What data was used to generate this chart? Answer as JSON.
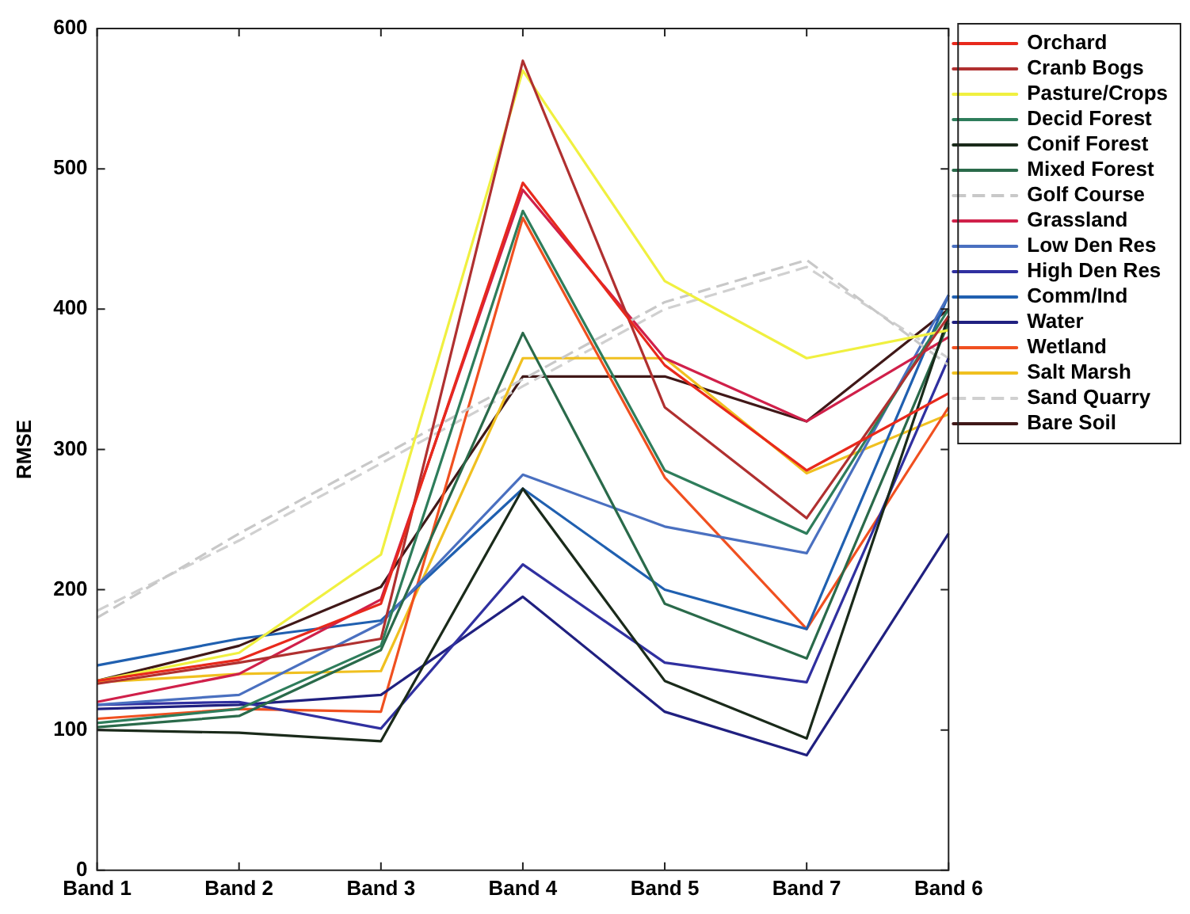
{
  "chart_data": {
    "type": "line",
    "ylabel": "RMSE",
    "categories": [
      "Band 1",
      "Band 2",
      "Band 3",
      "Band 4",
      "Band 5",
      "Band 7",
      "Band 6"
    ],
    "ylim": [
      0,
      600
    ],
    "yticks": [
      0,
      100,
      200,
      300,
      400,
      500,
      600
    ],
    "grid": false,
    "legend": "right",
    "marker": "none",
    "series": [
      {
        "name": "Orchard",
        "color": "#e8291c",
        "values": [
          135,
          150,
          190,
          490,
          360,
          285,
          340
        ]
      },
      {
        "name": "Cranb Bogs",
        "color": "#b03030",
        "values": [
          133,
          148,
          165,
          577,
          330,
          251,
          395
        ]
      },
      {
        "name": "Pasture/Crops",
        "color": "#f0f040",
        "values": [
          135,
          155,
          225,
          570,
          420,
          365,
          385
        ]
      },
      {
        "name": "Decid Forest",
        "color": "#2e7d5b",
        "values": [
          105,
          115,
          160,
          470,
          285,
          240,
          400
        ]
      },
      {
        "name": "Conif Forest",
        "color": "#1a2a1a",
        "values": [
          100,
          98,
          92,
          272,
          135,
          94,
          395
        ]
      },
      {
        "name": "Mixed Forest",
        "color": "#2a6a4a",
        "values": [
          102,
          110,
          157,
          383,
          190,
          151,
          390
        ]
      },
      {
        "name": "Golf Course",
        "color": "#c8c8c8",
        "line_style": "dashed",
        "values": [
          180,
          240,
          295,
          350,
          405,
          435,
          360
        ]
      },
      {
        "name": "Grassland",
        "color": "#d0204a",
        "values": [
          120,
          140,
          193,
          485,
          365,
          320,
          380
        ]
      },
      {
        "name": "Low Den Res",
        "color": "#4a70c0",
        "values": [
          118,
          125,
          176,
          282,
          245,
          226,
          410
        ]
      },
      {
        "name": "High Den Res",
        "color": "#3030a0",
        "values": [
          118,
          120,
          101,
          218,
          148,
          134,
          365
        ]
      },
      {
        "name": "Comm/Ind",
        "color": "#2060b0",
        "values": [
          146,
          165,
          178,
          272,
          200,
          172,
          410
        ]
      },
      {
        "name": "Water",
        "color": "#202080",
        "values": [
          115,
          118,
          125,
          195,
          113,
          82,
          240
        ]
      },
      {
        "name": "Wetland",
        "color": "#f05020",
        "values": [
          108,
          115,
          113,
          465,
          280,
          172,
          330
        ]
      },
      {
        "name": "Salt Marsh",
        "color": "#f0c020",
        "values": [
          134,
          140,
          142,
          365,
          365,
          283,
          325
        ]
      },
      {
        "name": "Sand Quarry",
        "color": "#d0d0d0",
        "line_style": "dashed",
        "values": [
          185,
          235,
          290,
          345,
          400,
          430,
          365
        ]
      },
      {
        "name": "Bare Soil",
        "color": "#401818",
        "values": [
          135,
          160,
          202,
          352,
          352,
          320,
          400
        ]
      }
    ]
  }
}
